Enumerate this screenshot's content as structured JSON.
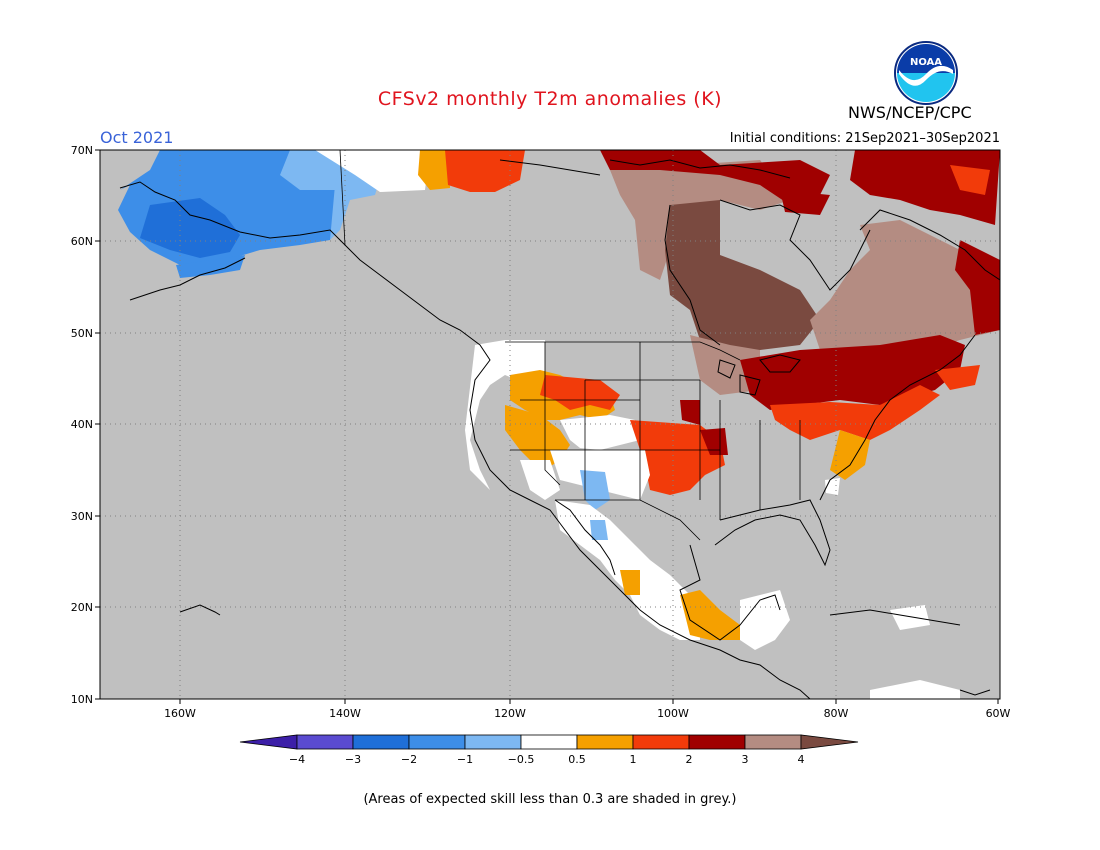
{
  "header": {
    "title": "CFSv2 monthly T2m anomalies (K)",
    "month": "Oct 2021",
    "initial_conditions": "Initial conditions: 21Sep2021–30Sep2021",
    "agency": "NWS/NCEP/CPC",
    "logo_text": "NOAA"
  },
  "map": {
    "lat_labels": [
      "70N",
      "60N",
      "50N",
      "40N",
      "30N",
      "20N",
      "10N"
    ],
    "lon_labels": [
      "160W",
      "140W",
      "120W",
      "100W",
      "80W",
      "60W"
    ],
    "colors": {
      "ocean_grey": "#c0c0c0",
      "minus4": "#3c1fa8",
      "minus3": "#5a4bd0",
      "minus2": "#1f6fd8",
      "minus1": "#3d8ee8",
      "minus05": "#7db8f2",
      "neutral": "#ffffff",
      "plus05": "#f5a000",
      "plus1": "#f23b0a",
      "plus2": "#a00000",
      "plus3": "#b48c82",
      "plus4": "#7a4a40"
    }
  },
  "colorbar": {
    "labels": [
      "−4",
      "−3",
      "−2",
      "−1",
      "−0.5",
      "0.5",
      "1",
      "2",
      "3",
      "4"
    ],
    "colors": [
      "#3c1fa8",
      "#5a4bd0",
      "#1f6fd8",
      "#3d8ee8",
      "#7db8f2",
      "#ffffff",
      "#f5a000",
      "#f23b0a",
      "#a00000",
      "#b48c82",
      "#7a4a40"
    ]
  },
  "footnote": "(Areas of expected skill less than 0.3 are shaded in grey.)"
}
